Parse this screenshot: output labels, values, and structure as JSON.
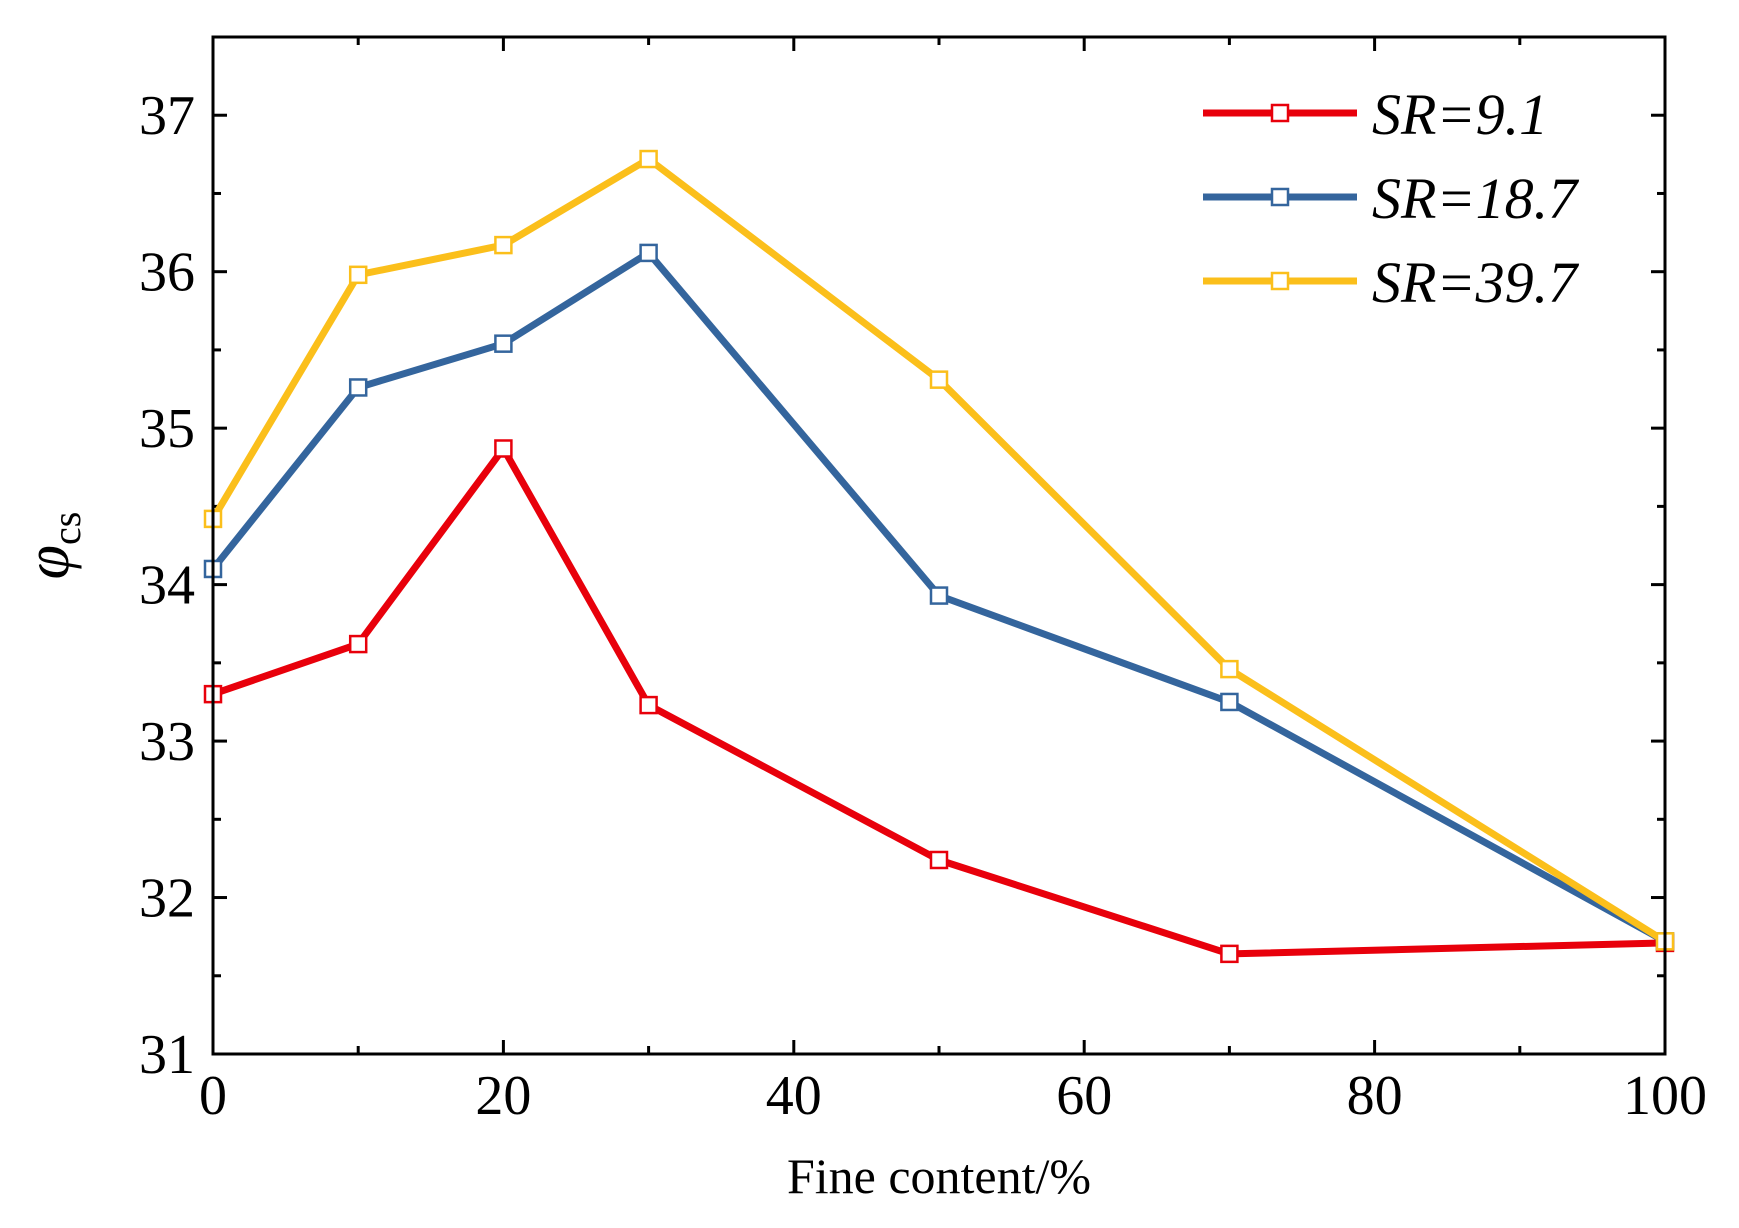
{
  "chart_data": {
    "type": "line",
    "title": "",
    "xlabel": "Fine content/%",
    "ylabel": {
      "main": "φ",
      "sub": "cs"
    },
    "xlim": [
      0,
      100
    ],
    "ylim": [
      31,
      37.5
    ],
    "xticks": [
      0,
      20,
      40,
      60,
      80,
      100
    ],
    "yticks": [
      31,
      32,
      33,
      34,
      35,
      36,
      37
    ],
    "x": [
      0,
      10,
      20,
      30,
      50,
      70,
      100
    ],
    "legend_position": "top-right",
    "series": [
      {
        "name": "SR=9.1",
        "color": "#e8000b",
        "values": [
          33.3,
          33.62,
          34.87,
          33.23,
          32.24,
          31.64,
          31.71
        ]
      },
      {
        "name": "SR=18.7",
        "color": "#34659d",
        "values": [
          34.1,
          35.26,
          35.54,
          36.12,
          33.93,
          33.25,
          31.72
        ]
      },
      {
        "name": "SR=39.7",
        "color": "#fbbf1b",
        "values": [
          34.42,
          35.98,
          36.17,
          36.72,
          35.31,
          33.46,
          31.72
        ]
      }
    ]
  }
}
